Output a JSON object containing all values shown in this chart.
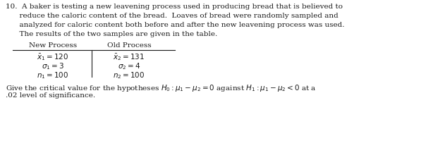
{
  "fig_width": 6.31,
  "fig_height": 2.01,
  "dpi": 100,
  "background_color": "#ffffff",
  "text_color": "#1a1a1a",
  "font_size": 7.5,
  "line1": "10.  A baker is testing a new leavening process used in producing bread that is believed to",
  "line2": "      reduce the caloric content of the bread.  Loaves of bread were randomly sampled and",
  "line3": "      analyzed for caloric content both before and after the new leavening process was used.",
  "line4": "      The results of the two samples are given in the table.",
  "col1_header": "New Process",
  "col2_header": "Old Process",
  "col1_row1": "$\\bar{x}_1 = 120$",
  "col1_row2": "$\\sigma_1 = 3$",
  "col1_row3": "$n_1 = 100$",
  "col2_row1": "$\\bar{x}_2 = 131$",
  "col2_row2": "$\\sigma_2 = 4$",
  "col2_row3": "$n_2 = 100$",
  "bottom1": "Give the critical value for the hypotheses $H_0 : \\mu_1 - \\mu_2 = 0$ against $H_1 : \\mu_1 - \\mu_2 < 0$ at a",
  "bottom2": ".02 level of significance."
}
